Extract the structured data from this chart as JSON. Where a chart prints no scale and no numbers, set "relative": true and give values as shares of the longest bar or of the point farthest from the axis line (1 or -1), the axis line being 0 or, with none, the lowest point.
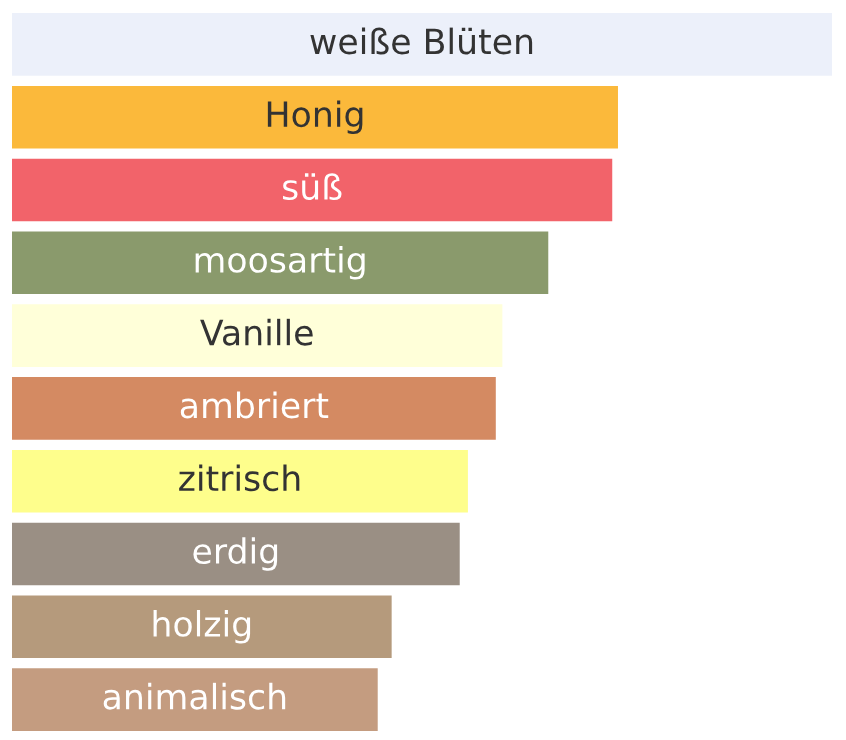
{
  "chart_data": {
    "type": "bar",
    "orientation": "horizontal",
    "relative": true,
    "categories": [
      "weiße Blüten",
      "Honig",
      "süß",
      "moosartig",
      "Vanille",
      "ambriert",
      "zitrisch",
      "erdig",
      "holzig",
      "animalisch"
    ],
    "values": [
      1,
      0.739,
      0.732,
      0.654,
      0.598,
      0.59,
      0.556,
      0.546,
      0.463,
      0.446
    ],
    "colors": [
      "#ecf0fa",
      "#fbb93b",
      "#f2636a",
      "#8a9a6c",
      "#ffffd9",
      "#d48a62",
      "#fefe8c",
      "#9a8f84",
      "#b59a7c",
      "#c49c80"
    ]
  }
}
